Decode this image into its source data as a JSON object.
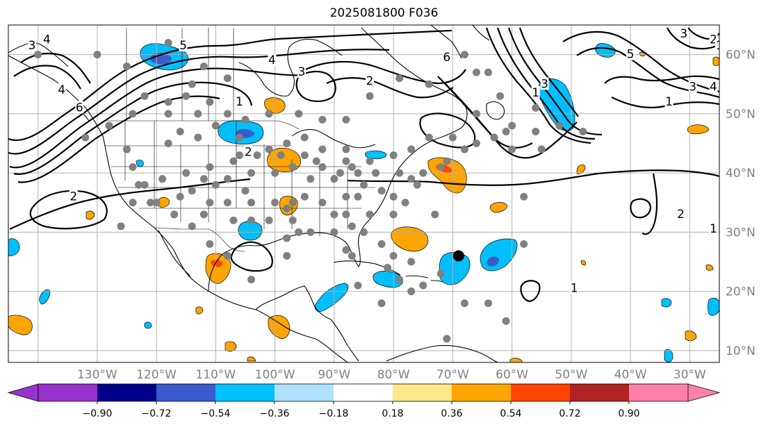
{
  "title": "2025081800 F036",
  "map": {
    "projection": "plate-carree",
    "lon_range": [
      -145,
      -25
    ],
    "lat_range": [
      8,
      65
    ],
    "grid": true,
    "lon_ticks": [
      {
        "lon": -130,
        "label": "130°W"
      },
      {
        "lon": -120,
        "label": "120°W"
      },
      {
        "lon": -110,
        "label": "110°W"
      },
      {
        "lon": -100,
        "label": "100°W"
      },
      {
        "lon": -90,
        "label": "90°W"
      },
      {
        "lon": -80,
        "label": "80°W"
      },
      {
        "lon": -70,
        "label": "70°W"
      },
      {
        "lon": -60,
        "label": "60°W"
      },
      {
        "lon": -50,
        "label": "50°W"
      },
      {
        "lon": -40,
        "label": "40°W"
      },
      {
        "lon": -30,
        "label": "30°W"
      }
    ],
    "lat_ticks": [
      {
        "lat": 60,
        "label": "60°N"
      },
      {
        "lat": 50,
        "label": "50°N"
      },
      {
        "lat": 40,
        "label": "40°N"
      },
      {
        "lat": 30,
        "label": "30°N"
      },
      {
        "lat": 20,
        "label": "20°N"
      },
      {
        "lat": 10,
        "label": "10°N"
      }
    ],
    "contour_labels": [
      {
        "text": "3",
        "lon": -141,
        "lat": 61.5
      },
      {
        "text": "4",
        "lon": -138.5,
        "lat": 62.5
      },
      {
        "text": "5",
        "lon": -115.5,
        "lat": 61.5
      },
      {
        "text": "6",
        "lon": -133,
        "lat": 51
      },
      {
        "text": "4",
        "lon": -136,
        "lat": 54
      },
      {
        "text": "1",
        "lon": -106,
        "lat": 52
      },
      {
        "text": "2",
        "lon": -104.5,
        "lat": 43.5
      },
      {
        "text": "3",
        "lon": -95.5,
        "lat": 57
      },
      {
        "text": "4",
        "lon": -100.5,
        "lat": 59
      },
      {
        "text": "6",
        "lon": -71,
        "lat": 59.5
      },
      {
        "text": "2",
        "lon": -134,
        "lat": 36
      },
      {
        "text": "1",
        "lon": -56,
        "lat": 53.5
      },
      {
        "text": "3",
        "lon": -54.5,
        "lat": 55
      },
      {
        "text": "5",
        "lon": -40,
        "lat": 60
      },
      {
        "text": "3",
        "lon": -29.5,
        "lat": 54.5
      },
      {
        "text": "1",
        "lon": -33.5,
        "lat": 52
      },
      {
        "text": "4",
        "lon": -26,
        "lat": 54.5
      },
      {
        "text": "3",
        "lon": -31,
        "lat": 63.5
      },
      {
        "text": "2",
        "lon": -26,
        "lat": 62.5
      },
      {
        "text": "1",
        "lon": -25,
        "lat": 61.5
      },
      {
        "text": "2",
        "lon": -31.5,
        "lat": 33
      },
      {
        "text": "1",
        "lon": -49.5,
        "lat": 20.5
      },
      {
        "text": "2",
        "lon": -84,
        "lat": 55.5
      },
      {
        "text": "1",
        "lon": -26,
        "lat": 30.5
      }
    ],
    "station_markers": [
      [
        -140,
        60
      ],
      [
        -130,
        60
      ],
      [
        -125,
        58
      ],
      [
        -118,
        62
      ],
      [
        -112,
        58
      ],
      [
        -108,
        56
      ],
      [
        -122,
        53
      ],
      [
        -118,
        52
      ],
      [
        -115,
        53
      ],
      [
        -111,
        52
      ],
      [
        -113,
        50
      ],
      [
        -108,
        50
      ],
      [
        -105,
        49
      ],
      [
        -101,
        50
      ],
      [
        -96,
        50
      ],
      [
        -92,
        49
      ],
      [
        -88,
        49
      ],
      [
        -84,
        53
      ],
      [
        -79,
        56
      ],
      [
        -74,
        55
      ],
      [
        -68,
        60
      ],
      [
        -64,
        57
      ],
      [
        -62,
        53
      ],
      [
        -56,
        51
      ],
      [
        -52,
        48
      ],
      [
        -48,
        47
      ],
      [
        -66,
        50
      ],
      [
        -61,
        47
      ],
      [
        -56,
        47
      ],
      [
        -55,
        44
      ],
      [
        -60,
        44
      ],
      [
        -63,
        46
      ],
      [
        -66,
        45
      ],
      [
        -70,
        46
      ],
      [
        -74,
        46
      ],
      [
        -77,
        44
      ],
      [
        -80,
        43
      ],
      [
        -79,
        40
      ],
      [
        -75,
        40
      ],
      [
        -72,
        41
      ],
      [
        -76,
        38
      ],
      [
        -78,
        35
      ],
      [
        -80,
        33
      ],
      [
        -84,
        33
      ],
      [
        -86,
        36
      ],
      [
        -88,
        36
      ],
      [
        -90,
        39
      ],
      [
        -93,
        42
      ],
      [
        -97,
        41
      ],
      [
        -100,
        40
      ],
      [
        -104,
        40
      ],
      [
        -107,
        42
      ],
      [
        -111,
        41
      ],
      [
        -115,
        40
      ],
      [
        -119,
        39
      ],
      [
        -122,
        38
      ],
      [
        -124,
        41
      ],
      [
        -118,
        45
      ],
      [
        -116,
        47
      ],
      [
        -113,
        46
      ],
      [
        -110,
        48
      ],
      [
        -106,
        46
      ],
      [
        -101,
        44
      ],
      [
        -98,
        45
      ],
      [
        -95,
        46
      ],
      [
        -92,
        44
      ],
      [
        -88,
        44
      ],
      [
        -84,
        42
      ],
      [
        -104,
        35
      ],
      [
        -108,
        35
      ],
      [
        -111,
        35
      ],
      [
        -97,
        35
      ],
      [
        -95,
        36
      ],
      [
        -92,
        35
      ],
      [
        -88,
        33
      ],
      [
        -90,
        30
      ],
      [
        -94,
        30
      ],
      [
        -97,
        32
      ],
      [
        -101,
        32
      ],
      [
        -104,
        32
      ],
      [
        -107,
        32
      ],
      [
        -112,
        33
      ],
      [
        -117,
        33
      ],
      [
        -120,
        35
      ],
      [
        -123,
        38
      ],
      [
        -125,
        44
      ],
      [
        -132,
        46
      ],
      [
        -98,
        29
      ],
      [
        -98,
        26
      ],
      [
        -82,
        28
      ],
      [
        -80,
        26
      ],
      [
        -81,
        24
      ],
      [
        -77,
        25
      ],
      [
        -72,
        23
      ],
      [
        -75,
        21
      ],
      [
        -79,
        22
      ],
      [
        -86,
        21
      ],
      [
        -82,
        18
      ],
      [
        -68,
        18
      ],
      [
        -64,
        18
      ],
      [
        -61,
        15
      ],
      [
        -58,
        28
      ],
      [
        -60,
        48
      ],
      [
        -68,
        44
      ],
      [
        -71,
        42
      ],
      [
        -77,
        39
      ],
      [
        -88,
        42
      ],
      [
        -94,
        39
      ],
      [
        -100,
        35
      ],
      [
        -105,
        37
      ],
      [
        -110,
        38
      ],
      [
        -118,
        50
      ],
      [
        -114,
        55
      ],
      [
        -128,
        48
      ],
      [
        -124,
        50
      ],
      [
        -66,
        57
      ],
      [
        -58,
        36
      ],
      [
        -73,
        33
      ],
      [
        -85,
        30
      ],
      [
        -87,
        31
      ],
      [
        -96,
        30
      ],
      [
        -98,
        34
      ],
      [
        -90,
        33
      ],
      [
        -88,
        27
      ],
      [
        -87,
        26
      ],
      [
        -77,
        20
      ],
      [
        -71,
        12
      ],
      [
        -80,
        36
      ],
      [
        -82,
        37
      ],
      [
        -85,
        38
      ],
      [
        -83,
        40
      ],
      [
        -86,
        40
      ],
      [
        -87,
        41
      ],
      [
        -89,
        40
      ],
      [
        -92,
        41
      ],
      [
        -95,
        43
      ],
      [
        -99,
        43
      ],
      [
        -103,
        43
      ],
      [
        -106,
        43
      ],
      [
        -108,
        39
      ],
      [
        -112,
        39
      ],
      [
        -114,
        37
      ],
      [
        -116,
        36
      ],
      [
        -121,
        35
      ],
      [
        -124,
        35
      ],
      [
        -126,
        31
      ],
      [
        -114,
        31
      ],
      [
        -111,
        28
      ],
      [
        -108,
        26
      ],
      [
        -104,
        22
      ]
    ],
    "marker_note": "",
    "storm_center": {
      "lon": -69,
      "lat": 26
    }
  },
  "colorbar": {
    "colors": [
      "#9932cc",
      "#00008b",
      "#3a5bcc",
      "#00bfff",
      "#afe1ff",
      "#ffffff",
      "#ffe88a",
      "#ffa500",
      "#ff4500",
      "#b22222",
      "#ff80aa"
    ],
    "under_color": "#9932cc",
    "over_color": "#ff80aa",
    "boundaries": [
      -0.9,
      -0.72,
      -0.54,
      -0.36,
      -0.18,
      0.18,
      0.36,
      0.54,
      0.72,
      0.9
    ],
    "tick_labels": [
      "−0.90",
      "−0.72",
      "−0.54",
      "−0.36",
      "−0.18",
      "0.18",
      "0.36",
      "0.54",
      "0.72",
      "0.90"
    ]
  }
}
